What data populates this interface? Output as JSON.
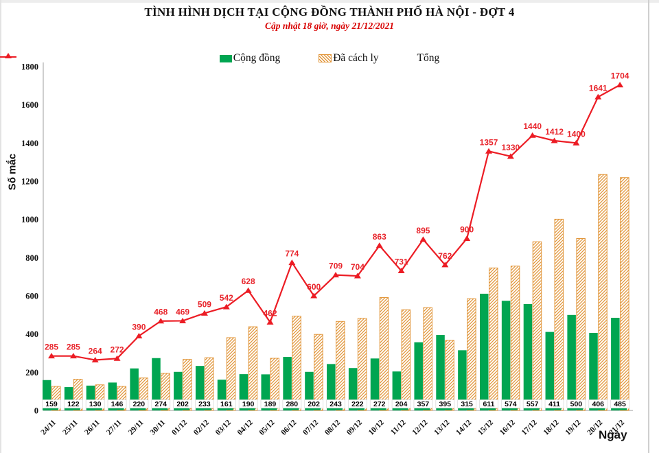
{
  "header": {
    "title": "TÌNH HÌNH DỊCH TẠI CỘNG ĐỒNG THÀNH PHỐ HÀ NỘI - ĐỢT 4",
    "subtitle": "Cập nhật 18 giờ, ngày 21/12/2021"
  },
  "legend": {
    "community": "Cộng đồng",
    "quarantined": "Đã cách ly",
    "total": "Tổng"
  },
  "axes": {
    "y_label": "Số mắc",
    "x_label": "Ngày"
  },
  "colors": {
    "community_green": "#00A551",
    "quarantine_orange": "#E2973C",
    "total_red": "#EC1C24",
    "value_label_red": "#E8242B",
    "subtitle_red": "#D80000",
    "axis_gray": "#BFBFBF"
  },
  "chart_data": {
    "type": "bar",
    "title": "TÌNH HÌNH DỊCH TẠI CỘNG ĐỒNG THÀNH PHỐ HÀ NỘI - ĐỢT 4",
    "subtitle": "Cập nhật 18 giờ, ngày 21/12/2021",
    "xlabel": "Ngày",
    "ylabel": "Số mắc",
    "ylim": [
      0,
      1800
    ],
    "ytick_step": 200,
    "grid": false,
    "legend_position": "top-center",
    "categories": [
      "24/11",
      "25/11",
      "26/11",
      "27/11",
      "29/11",
      "30/11",
      "01/12",
      "02/12",
      "03/12",
      "04/12",
      "05/12",
      "06/12",
      "07/12",
      "08/12",
      "09/12",
      "10/12",
      "11/12",
      "12/12",
      "13/12",
      "14/12",
      "15/12",
      "16/12",
      "17/12",
      "18/12",
      "19/12",
      "20/12",
      "21/12"
    ],
    "series": [
      {
        "name": "Cộng đồng",
        "kind": "bar-solid-green",
        "values": [
          159,
          122,
          130,
          146,
          220,
          274,
          202,
          233,
          161,
          190,
          189,
          280,
          202,
          243,
          222,
          272,
          204,
          357,
          395,
          315,
          611,
          574,
          557,
          411,
          500,
          406,
          485
        ],
        "labels_shown": "in white boxes at base of each bar"
      },
      {
        "name": "Đã cách ly",
        "kind": "bar-hatched-orange",
        "values": [
          126,
          163,
          134,
          126,
          170,
          194,
          267,
          276,
          381,
          438,
          273,
          494,
          398,
          466,
          482,
          591,
          527,
          538,
          367,
          585,
          746,
          756,
          883,
          1001,
          900,
          1235,
          1219
        ],
        "labels_shown": "none; bar heights equal Tổng minus Cộng đồng"
      },
      {
        "name": "Tổng",
        "kind": "line-triangle-markers",
        "values": [
          285,
          285,
          264,
          272,
          390,
          468,
          469,
          509,
          542,
          628,
          462,
          774,
          600,
          709,
          704,
          863,
          731,
          895,
          762,
          900,
          1357,
          1330,
          1440,
          1412,
          1400,
          1641,
          1704
        ],
        "labels_shown": "red number above each marker"
      }
    ]
  }
}
